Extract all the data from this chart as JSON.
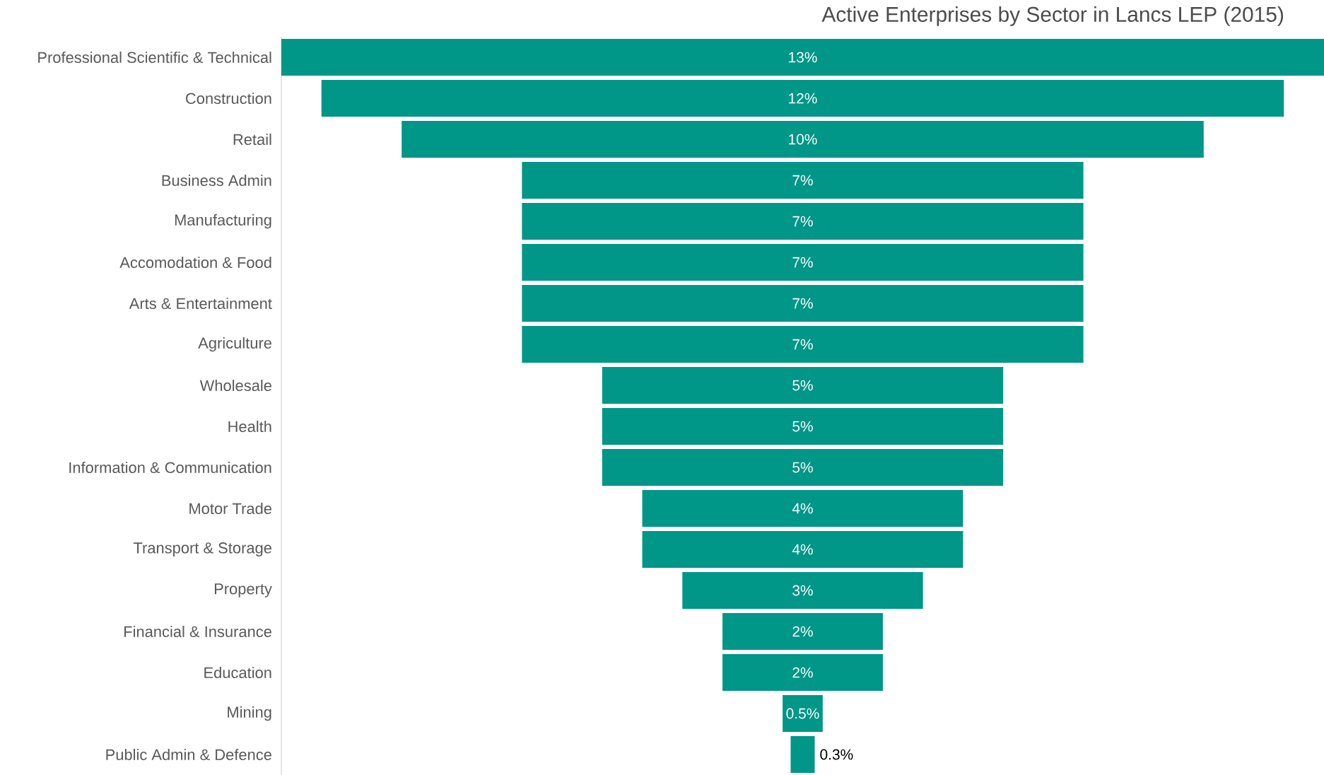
{
  "chart_data": {
    "type": "other",
    "title": "Active Enterprises by Sector in Lancs LEP (2015)",
    "categories": [
      "Professional Scientific & Technical",
      "Construction",
      "Retail",
      "Business Admin",
      "Manufacturing",
      "Accomodation & Food",
      "Arts & Entertainment",
      "Agriculture",
      "Wholesale",
      "Health",
      "Information & Communication",
      "Motor Trade",
      "Transport & Storage",
      "Property",
      "Financial & Insurance",
      "Education",
      "Mining",
      "Public Admin & Defence"
    ],
    "values": [
      13,
      12,
      10,
      7,
      7,
      7,
      7,
      7,
      5,
      5,
      5,
      4,
      4,
      3,
      2,
      2,
      0.5,
      0.3
    ],
    "value_labels": [
      "13%",
      "12%",
      "10%",
      "7%",
      "7%",
      "7%",
      "7%",
      "7%",
      "5%",
      "5%",
      "5%",
      "4%",
      "4%",
      "3%",
      "2%",
      "2%",
      "0.5%",
      "0.3%"
    ],
    "color": "#009688"
  }
}
